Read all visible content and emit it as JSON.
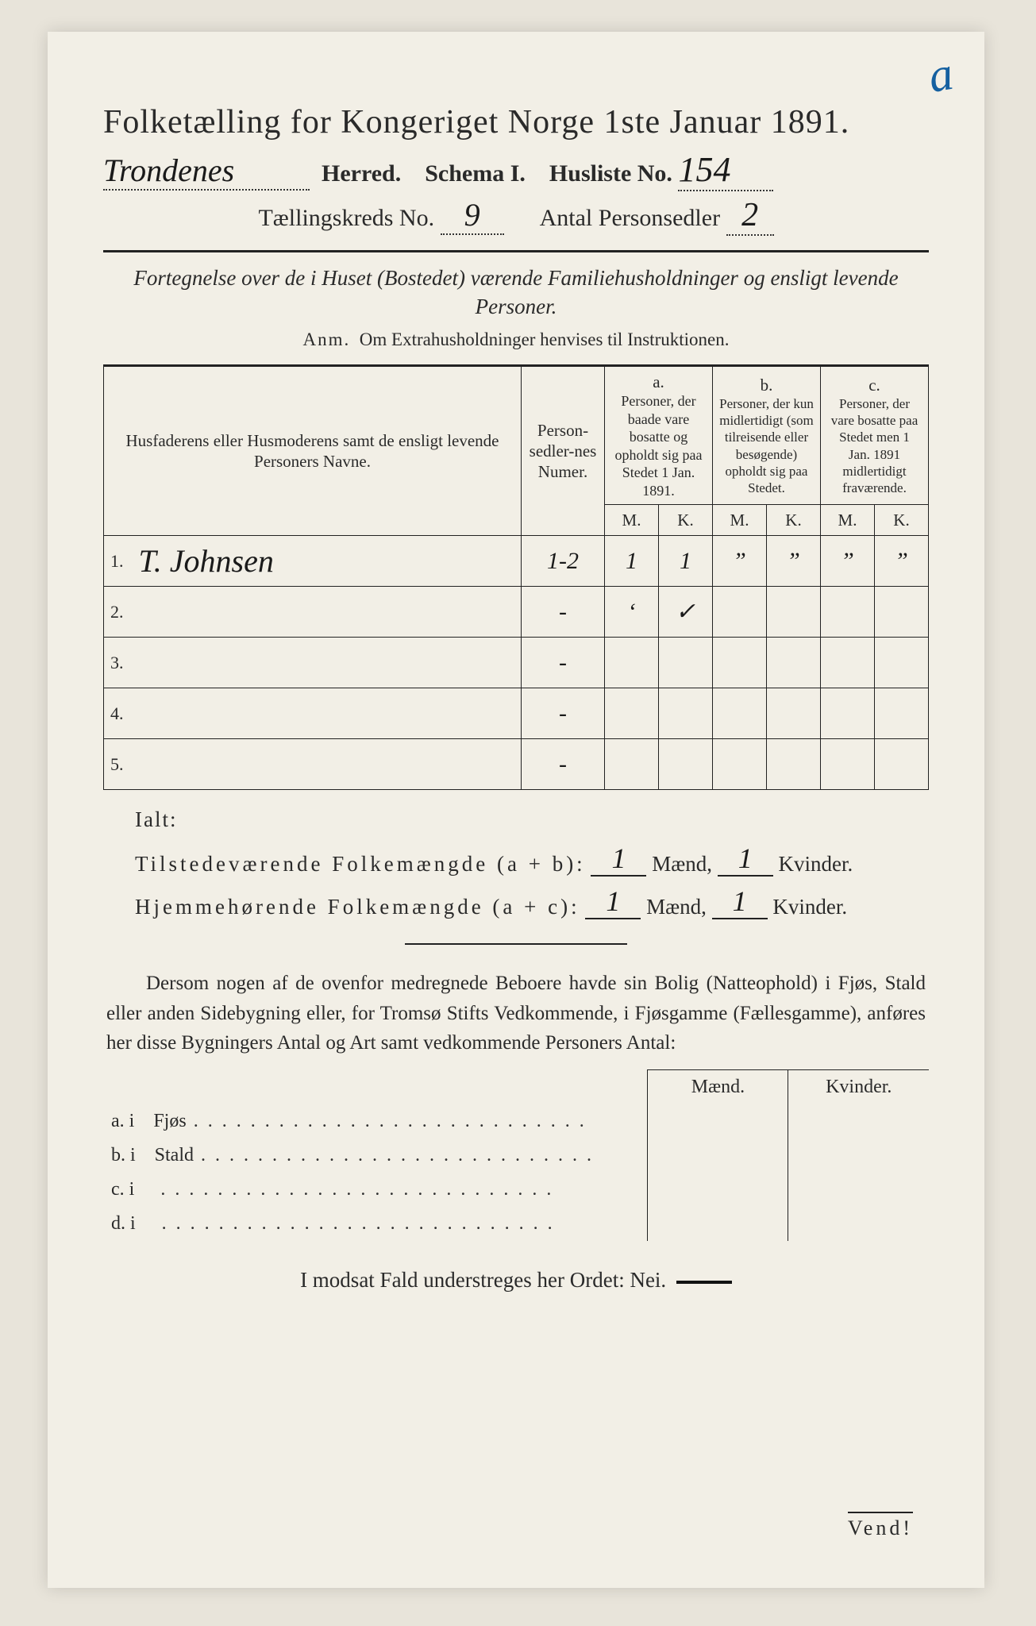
{
  "header": {
    "title": "Folketælling for Kongeriget Norge 1ste Januar 1891.",
    "herred_value": "Trondenes",
    "herred_label": "Herred.",
    "schema_label": "Schema I.",
    "husliste_label": "Husliste No.",
    "husliste_value": "154",
    "kreds_label": "Tællingskreds No.",
    "kreds_value": "9",
    "sedler_label": "Antal Personsedler",
    "sedler_value": "2"
  },
  "subtitle": "Fortegnelse over de i Huset (Bostedet) værende Familiehusholdninger og ensligt levende Personer.",
  "anm_label": "Anm.",
  "anm_text": "Om Extrahusholdninger henvises til Instruktionen.",
  "table": {
    "col_name": "Husfaderens eller Husmoderens samt de ensligt levende Personers Navne.",
    "col_num": "Person-sedler-nes Numer.",
    "col_a_label": "a.",
    "col_a": "Personer, der baade vare bosatte og opholdt sig paa Stedet 1 Jan. 1891.",
    "col_b_label": "b.",
    "col_b": "Personer, der kun midlertidigt (som tilreisende eller besøgende) opholdt sig paa Stedet.",
    "col_c_label": "c.",
    "col_c": "Personer, der vare bosatte paa Stedet men 1 Jan. 1891 midlertidigt fraværende.",
    "mk_m": "M.",
    "mk_k": "K.",
    "rows": [
      {
        "n": "1.",
        "name": "T. Johnsen",
        "num": "1-2",
        "am": "1",
        "ak": "1",
        "bm": "”",
        "bk": "”",
        "cm": "”",
        "ck": "”"
      },
      {
        "n": "2.",
        "name": "",
        "num": "-",
        "am": "‘",
        "ak": "✓",
        "bm": "",
        "bk": "",
        "cm": "",
        "ck": ""
      },
      {
        "n": "3.",
        "name": "",
        "num": "-",
        "am": "",
        "ak": "",
        "bm": "",
        "bk": "",
        "cm": "",
        "ck": ""
      },
      {
        "n": "4.",
        "name": "",
        "num": "-",
        "am": "",
        "ak": "",
        "bm": "",
        "bk": "",
        "cm": "",
        "ck": ""
      },
      {
        "n": "5.",
        "name": "",
        "num": "-",
        "am": "",
        "ak": "",
        "bm": "",
        "bk": "",
        "cm": "",
        "ck": ""
      }
    ]
  },
  "totals": {
    "ialt": "Ialt:",
    "line1_label": "Tilstedeværende Folkemængde (a + b):",
    "line2_label": "Hjemmehørende Folkemængde (a + c):",
    "maend": "Mænd,",
    "kvinder": "Kvinder.",
    "v1m": "1",
    "v1k": "1",
    "v2m": "1",
    "v2k": "1"
  },
  "para": "Dersom nogen af de ovenfor medregnede Beboere havde sin Bolig (Natteophold) i Fjøs, Stald eller anden Sidebygning eller, for Tromsø Stifts Vedkommende, i Fjøsgamme (Fællesgamme), anføres her disse Bygningers Antal og Art samt vedkommende Personers Antal:",
  "bldg": {
    "maend": "Mænd.",
    "kvinder": "Kvinder.",
    "rows": [
      {
        "l": "a.  i",
        "t": "Fjøs"
      },
      {
        "l": "b.  i",
        "t": "Stald"
      },
      {
        "l": "c.  i",
        "t": ""
      },
      {
        "l": "d.  i",
        "t": ""
      }
    ]
  },
  "nei": "I modsat Fald understreges her Ordet: Nei.",
  "vend": "Vend!",
  "corner": "a"
}
